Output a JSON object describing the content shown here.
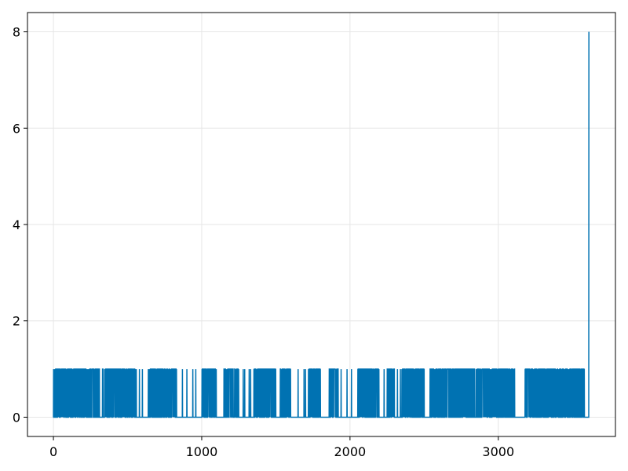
{
  "chart_data": {
    "type": "line",
    "title": "",
    "xlabel": "",
    "ylabel": "",
    "xlim": [
      -175,
      3790
    ],
    "ylim": [
      -0.4,
      8.4
    ],
    "grid": true,
    "series_color": "#0072B2",
    "x_ticks": [
      0,
      1000,
      2000,
      3000
    ],
    "x_tick_labels": [
      "0",
      "1000",
      "2000",
      "3000"
    ],
    "y_ticks": [
      0,
      2,
      4,
      6,
      8
    ],
    "y_tick_labels": [
      "0",
      "2",
      "4",
      "6",
      "8"
    ],
    "series": [
      {
        "description_of_pattern": "binary 0/1 sequence indexed 0..3610 followed by a final spike",
        "x_start": 0,
        "x_end": 3610,
        "dense_intervals_value_1": [
          [
            0,
            215
          ],
          [
            215,
            310
          ],
          [
            330,
            560
          ],
          [
            640,
            830
          ],
          [
            1000,
            1100
          ],
          [
            1150,
            1250
          ],
          [
            1350,
            1500
          ],
          [
            1530,
            1600
          ],
          [
            1720,
            1800
          ],
          [
            1860,
            1920
          ],
          [
            2050,
            2200
          ],
          [
            2250,
            2300
          ],
          [
            2350,
            2500
          ],
          [
            2540,
            2840
          ],
          [
            2850,
            3110
          ],
          [
            3180,
            3580
          ]
        ],
        "sparse_ones_at": [
          580,
          600,
          870,
          900,
          940,
          960,
          1030,
          1280,
          1290,
          1320,
          1330,
          1380,
          1650,
          1690,
          1700,
          1940,
          1980,
          2010,
          2230,
          2320,
          2340
        ],
        "final_points": [
          {
            "x": 3560,
            "y": 1
          },
          {
            "x": 3570,
            "y": 0
          },
          {
            "x": 3610,
            "y": 0
          },
          {
            "x": 3611,
            "y": 8
          }
        ]
      }
    ]
  }
}
